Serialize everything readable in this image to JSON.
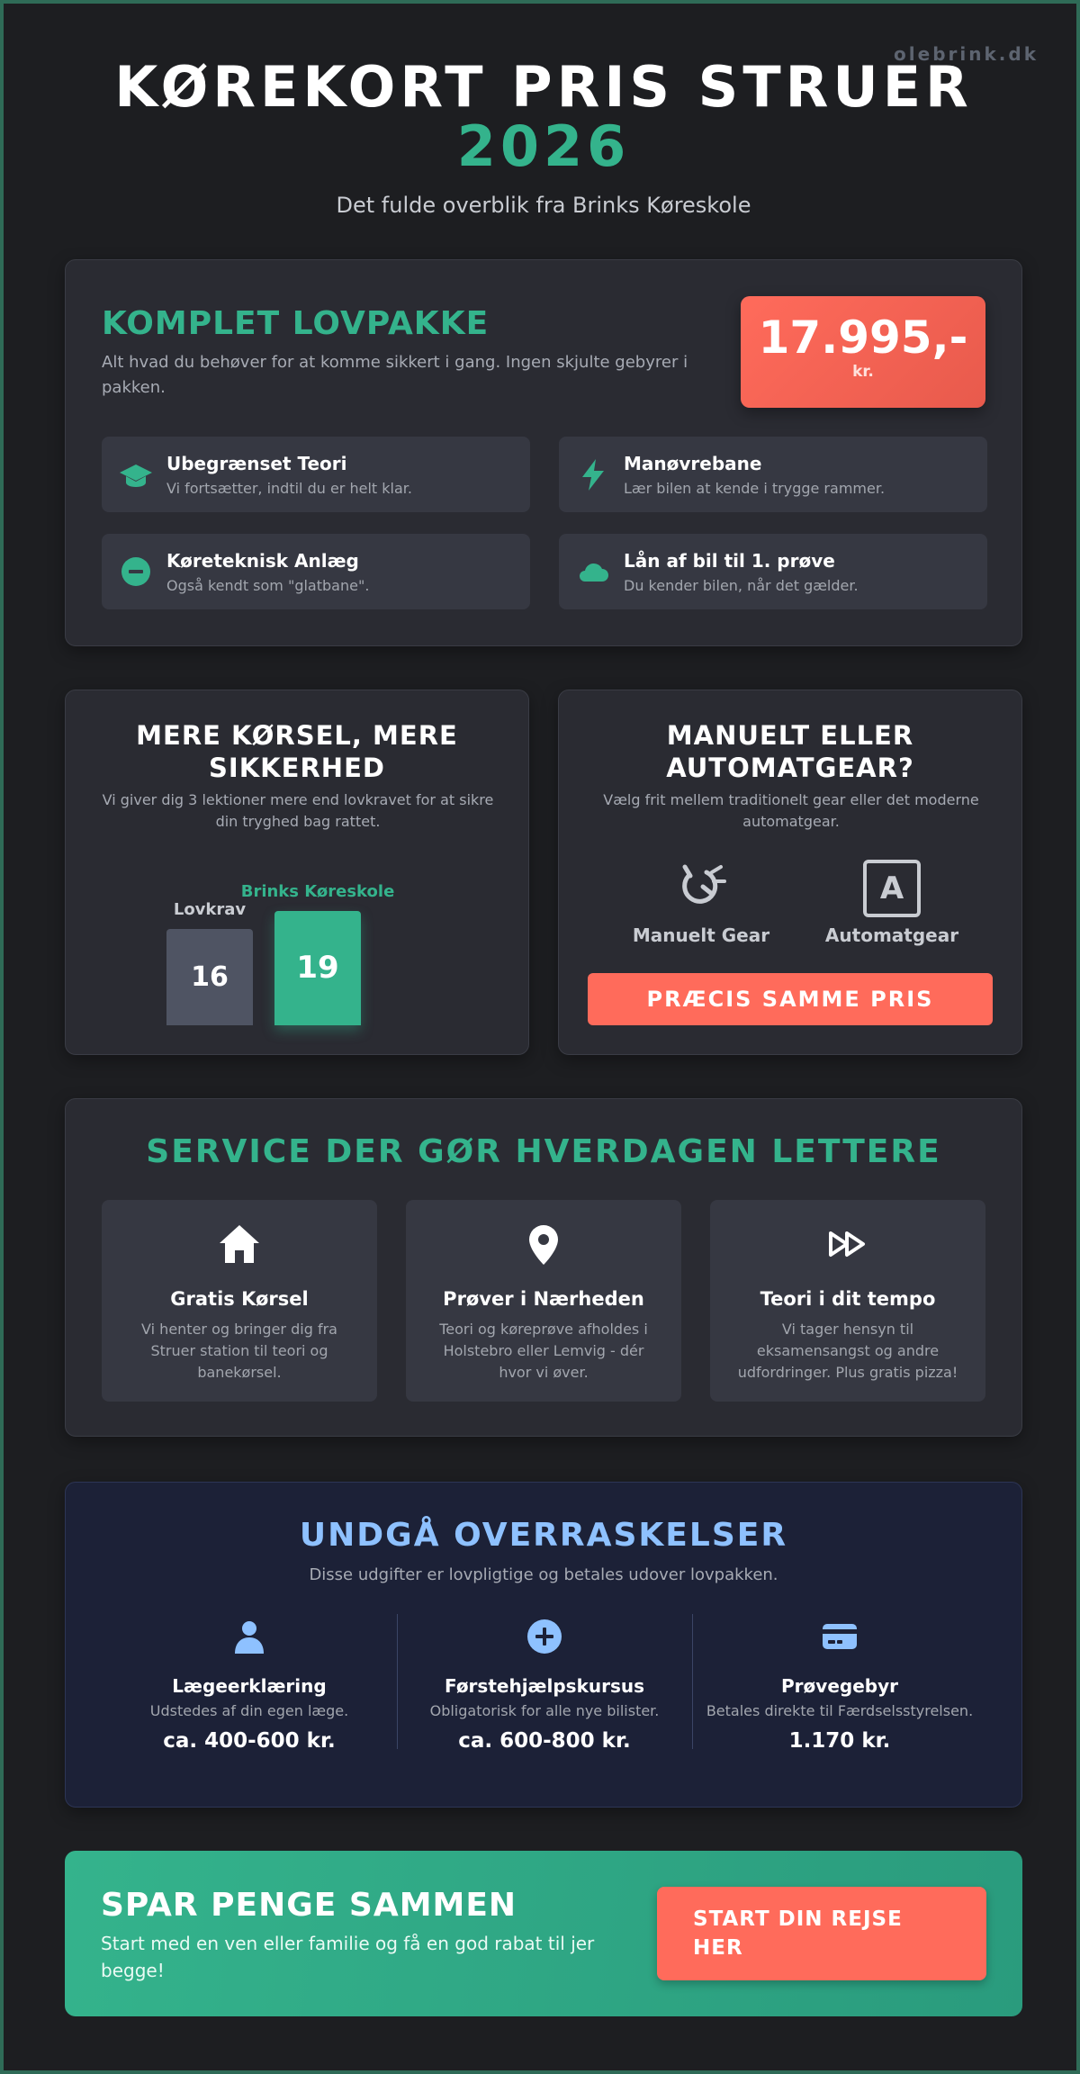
{
  "watermark": "olebrink.dk",
  "hero": {
    "title": "KØREKORT PRIS STRUER",
    "year": "2026",
    "subtitle": "Det fulde overblik fra Brinks Køreskole"
  },
  "package": {
    "title": "KOMPLET LOVPAKKE",
    "description": "Alt hvad du behøver for at komme sikkert i gang. Ingen skjulte gebyrer i pakken.",
    "price": "17.995,-",
    "price_unit": "kr.",
    "features": [
      {
        "icon": "graduation-cap-icon",
        "title": "Ubegrænset Teori",
        "desc": "Vi fortsætter, indtil du er helt klar."
      },
      {
        "icon": "lightning-bolt-icon",
        "title": "Manøvrebane",
        "desc": "Lær bilen at kende i trygge rammer."
      },
      {
        "icon": "minus-circle-icon",
        "title": "Køreteknisk Anlæg",
        "desc": "Også kendt som \"glatbane\"."
      },
      {
        "icon": "cloud-icon",
        "title": "Lån af bil til 1. prøve",
        "desc": "Du kender bilen, når det gælder."
      }
    ]
  },
  "more_driving": {
    "title": "MERE KØRSEL, MERE SIKKERHED",
    "description": "Vi giver dig 3 lektioner mere end lovkravet for at sikre din tryghed bag rattet.",
    "chart_data": {
      "type": "bar",
      "categories": [
        "Lovkrav",
        "Brinks Køreskole"
      ],
      "values": [
        16,
        19
      ],
      "colors": [
        "#4f5463",
        "#34b38c"
      ]
    }
  },
  "gear": {
    "title": "MANUELT ELLER AUTOMATGEAR?",
    "description": "Vælg frit mellem traditionelt gear eller det moderne automatgear.",
    "manual_label": "Manuelt Gear",
    "auto_label": "Automatgear",
    "auto_letter": "A",
    "same_price": "PRÆCIS SAMME PRIS"
  },
  "service": {
    "title": "SERVICE DER GØR HVERDAGEN LETTERE",
    "items": [
      {
        "icon": "home-icon",
        "title": "Gratis Kørsel",
        "desc": "Vi henter og bringer dig fra Struer station til teori og banekørsel."
      },
      {
        "icon": "map-pin-icon",
        "title": "Prøver i Nærheden",
        "desc": "Teori og køreprøve afholdes i Holstebro eller Lemvig - dér hvor vi øver."
      },
      {
        "icon": "fast-forward-icon",
        "title": "Teori i dit tempo",
        "desc": "Vi tager hensyn til eksamensangst og andre udfordringer. Plus gratis pizza!"
      }
    ]
  },
  "avoid": {
    "title": "UNDGÅ OVERRASKELSER",
    "subtitle": "Disse udgifter er lovpligtige og betales udover lovpakken.",
    "items": [
      {
        "icon": "user-icon",
        "title": "Lægeerklæring",
        "desc": "Udstedes af din egen læge.",
        "price": "ca. 400-600 kr."
      },
      {
        "icon": "plus-circle-icon",
        "title": "Førstehjælpskursus",
        "desc": "Obligatorisk for alle nye bilister.",
        "price": "ca. 600-800 kr."
      },
      {
        "icon": "credit-card-icon",
        "title": "Prøvegebyr",
        "desc": "Betales direkte til Færdselsstyrelsen.",
        "price": "1.170 kr."
      }
    ]
  },
  "save": {
    "title": "SPAR PENGE SAMMEN",
    "description": "Start med en ven eller familie og få en god rabat til jer begge!",
    "cta": "START DIN REJSE HER"
  },
  "colors": {
    "accent_green": "#34b38c",
    "accent_red": "#ff6b5b",
    "accent_blue": "#8ec1ff",
    "card_bg": "#2a2b32"
  }
}
